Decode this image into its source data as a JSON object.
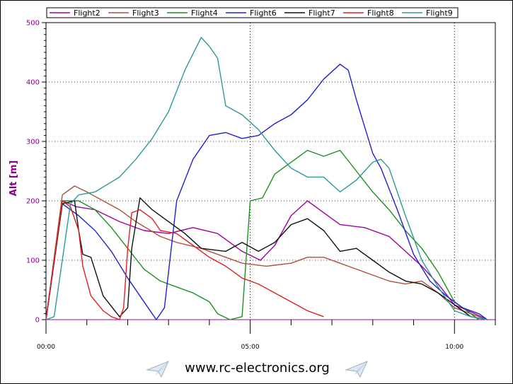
{
  "chart_data": {
    "type": "line",
    "title": "",
    "xlabel": "",
    "ylabel": "Alt [m]",
    "xlim": [
      "00:00",
      "11:00"
    ],
    "ylim": [
      0,
      500
    ],
    "x_ticks": [
      "00:00",
      "05:00",
      "10:00"
    ],
    "y_ticks": [
      "0",
      "100",
      "200",
      "300",
      "400",
      "500"
    ],
    "grid": true,
    "legend_position": "top",
    "series": [
      {
        "name": "Flight2",
        "color": "#a000a0",
        "points": [
          [
            "00:00",
            0
          ],
          [
            "00:24",
            200
          ],
          [
            "00:45",
            190
          ],
          [
            "01:12",
            185
          ],
          [
            "01:48",
            165
          ],
          [
            "02:24",
            150
          ],
          [
            "03:00",
            145
          ],
          [
            "03:36",
            155
          ],
          [
            "04:12",
            145
          ],
          [
            "04:48",
            115
          ],
          [
            "05:15",
            100
          ],
          [
            "05:36",
            125
          ],
          [
            "06:00",
            175
          ],
          [
            "06:24",
            200
          ],
          [
            "06:48",
            180
          ],
          [
            "07:12",
            160
          ],
          [
            "07:48",
            155
          ],
          [
            "08:24",
            140
          ],
          [
            "08:48",
            115
          ],
          [
            "09:12",
            90
          ],
          [
            "09:36",
            60
          ],
          [
            "10:00",
            25
          ],
          [
            "10:30",
            10
          ],
          [
            "10:48",
            0
          ]
        ]
      },
      {
        "name": "Flight3",
        "color": "#b05040",
        "points": [
          [
            "00:00",
            0
          ],
          [
            "00:24",
            210
          ],
          [
            "00:42",
            225
          ],
          [
            "01:00",
            215
          ],
          [
            "01:24",
            200
          ],
          [
            "01:48",
            185
          ],
          [
            "02:12",
            165
          ],
          [
            "02:48",
            140
          ],
          [
            "03:12",
            130
          ],
          [
            "03:48",
            120
          ],
          [
            "04:24",
            105
          ],
          [
            "04:48",
            95
          ],
          [
            "05:24",
            90
          ],
          [
            "06:00",
            95
          ],
          [
            "06:24",
            105
          ],
          [
            "06:48",
            105
          ],
          [
            "07:12",
            95
          ],
          [
            "07:36",
            85
          ],
          [
            "08:00",
            75
          ],
          [
            "08:24",
            65
          ],
          [
            "08:48",
            60
          ],
          [
            "09:12",
            65
          ],
          [
            "09:36",
            45
          ],
          [
            "10:00",
            20
          ],
          [
            "10:24",
            10
          ],
          [
            "10:48",
            0
          ]
        ]
      },
      {
        "name": "Flight4",
        "color": "#209020",
        "points": [
          [
            "00:00",
            0
          ],
          [
            "00:24",
            200
          ],
          [
            "00:48",
            200
          ],
          [
            "01:12",
            185
          ],
          [
            "01:36",
            155
          ],
          [
            "02:00",
            120
          ],
          [
            "02:24",
            85
          ],
          [
            "02:48",
            65
          ],
          [
            "03:12",
            55
          ],
          [
            "03:36",
            45
          ],
          [
            "04:00",
            30
          ],
          [
            "04:12",
            10
          ],
          [
            "04:30",
            0
          ],
          [
            "04:48",
            5
          ],
          [
            "05:00",
            200
          ],
          [
            "05:18",
            205
          ],
          [
            "05:36",
            245
          ],
          [
            "06:00",
            265
          ],
          [
            "06:24",
            285
          ],
          [
            "06:48",
            275
          ],
          [
            "07:12",
            285
          ],
          [
            "07:36",
            250
          ],
          [
            "08:00",
            215
          ],
          [
            "08:24",
            185
          ],
          [
            "08:48",
            150
          ],
          [
            "09:12",
            120
          ],
          [
            "09:36",
            80
          ],
          [
            "10:00",
            30
          ],
          [
            "10:36",
            0
          ]
        ]
      },
      {
        "name": "Flight6",
        "color": "#2020d0",
        "points": [
          [
            "00:00",
            0
          ],
          [
            "00:24",
            195
          ],
          [
            "00:48",
            175
          ],
          [
            "01:12",
            150
          ],
          [
            "01:36",
            115
          ],
          [
            "02:00",
            70
          ],
          [
            "02:24",
            30
          ],
          [
            "02:42",
            0
          ],
          [
            "02:54",
            20
          ],
          [
            "03:12",
            200
          ],
          [
            "03:36",
            270
          ],
          [
            "04:00",
            310
          ],
          [
            "04:24",
            315
          ],
          [
            "04:48",
            305
          ],
          [
            "05:12",
            310
          ],
          [
            "05:36",
            330
          ],
          [
            "06:00",
            345
          ],
          [
            "06:24",
            370
          ],
          [
            "06:48",
            405
          ],
          [
            "07:12",
            430
          ],
          [
            "07:24",
            420
          ],
          [
            "07:36",
            370
          ],
          [
            "08:00",
            280
          ],
          [
            "08:12",
            255
          ],
          [
            "08:36",
            185
          ],
          [
            "09:00",
            110
          ],
          [
            "09:24",
            65
          ],
          [
            "09:48",
            40
          ],
          [
            "10:12",
            20
          ],
          [
            "10:36",
            10
          ],
          [
            "10:48",
            0
          ]
        ]
      },
      {
        "name": "Flight7",
        "color": "#101010",
        "points": [
          [
            "00:00",
            0
          ],
          [
            "00:24",
            195
          ],
          [
            "00:42",
            200
          ],
          [
            "00:48",
            150
          ],
          [
            "00:54",
            110
          ],
          [
            "01:06",
            105
          ],
          [
            "01:24",
            40
          ],
          [
            "01:48",
            5
          ],
          [
            "02:00",
            20
          ],
          [
            "02:06",
            120
          ],
          [
            "02:18",
            205
          ],
          [
            "02:36",
            185
          ],
          [
            "03:00",
            165
          ],
          [
            "03:24",
            145
          ],
          [
            "03:48",
            120
          ],
          [
            "04:24",
            115
          ],
          [
            "04:48",
            130
          ],
          [
            "05:12",
            115
          ],
          [
            "05:36",
            130
          ],
          [
            "06:00",
            160
          ],
          [
            "06:24",
            170
          ],
          [
            "06:48",
            150
          ],
          [
            "07:12",
            115
          ],
          [
            "07:36",
            120
          ],
          [
            "08:00",
            100
          ],
          [
            "08:24",
            80
          ],
          [
            "08:48",
            65
          ],
          [
            "09:12",
            60
          ],
          [
            "09:36",
            45
          ],
          [
            "10:00",
            25
          ],
          [
            "10:24",
            5
          ],
          [
            "10:48",
            0
          ]
        ]
      },
      {
        "name": "Flight8",
        "color": "#e02020",
        "points": [
          [
            "00:00",
            0
          ],
          [
            "00:24",
            200
          ],
          [
            "00:36",
            190
          ],
          [
            "00:48",
            150
          ],
          [
            "00:54",
            90
          ],
          [
            "01:06",
            40
          ],
          [
            "01:24",
            15
          ],
          [
            "01:36",
            5
          ],
          [
            "01:48",
            0
          ],
          [
            "01:54",
            20
          ],
          [
            "02:00",
            120
          ],
          [
            "02:06",
            180
          ],
          [
            "02:18",
            185
          ],
          [
            "02:36",
            170
          ],
          [
            "02:48",
            150
          ],
          [
            "03:12",
            145
          ],
          [
            "03:36",
            125
          ],
          [
            "04:00",
            105
          ],
          [
            "04:24",
            90
          ],
          [
            "04:48",
            70
          ],
          [
            "05:12",
            60
          ],
          [
            "05:36",
            45
          ],
          [
            "06:00",
            30
          ],
          [
            "06:24",
            15
          ],
          [
            "06:48",
            5
          ]
        ]
      },
      {
        "name": "Flight9",
        "color": "#2a9a9a",
        "points": [
          [
            "00:00",
            0
          ],
          [
            "00:12",
            5
          ],
          [
            "00:36",
            195
          ],
          [
            "00:48",
            210
          ],
          [
            "01:12",
            215
          ],
          [
            "01:48",
            240
          ],
          [
            "02:12",
            270
          ],
          [
            "02:36",
            305
          ],
          [
            "03:00",
            350
          ],
          [
            "03:24",
            420
          ],
          [
            "03:48",
            475
          ],
          [
            "04:00",
            460
          ],
          [
            "04:12",
            440
          ],
          [
            "04:24",
            360
          ],
          [
            "04:48",
            345
          ],
          [
            "05:12",
            320
          ],
          [
            "05:36",
            285
          ],
          [
            "06:00",
            255
          ],
          [
            "06:24",
            240
          ],
          [
            "06:48",
            240
          ],
          [
            "07:12",
            215
          ],
          [
            "07:36",
            235
          ],
          [
            "08:00",
            265
          ],
          [
            "08:12",
            270
          ],
          [
            "08:24",
            255
          ],
          [
            "08:48",
            175
          ],
          [
            "09:12",
            100
          ],
          [
            "09:36",
            55
          ],
          [
            "10:00",
            15
          ],
          [
            "10:24",
            5
          ],
          [
            "10:48",
            0
          ]
        ]
      }
    ]
  },
  "footer": {
    "website": "www.rc-electronics.org",
    "decor_icon": "paper-plane-icon"
  }
}
